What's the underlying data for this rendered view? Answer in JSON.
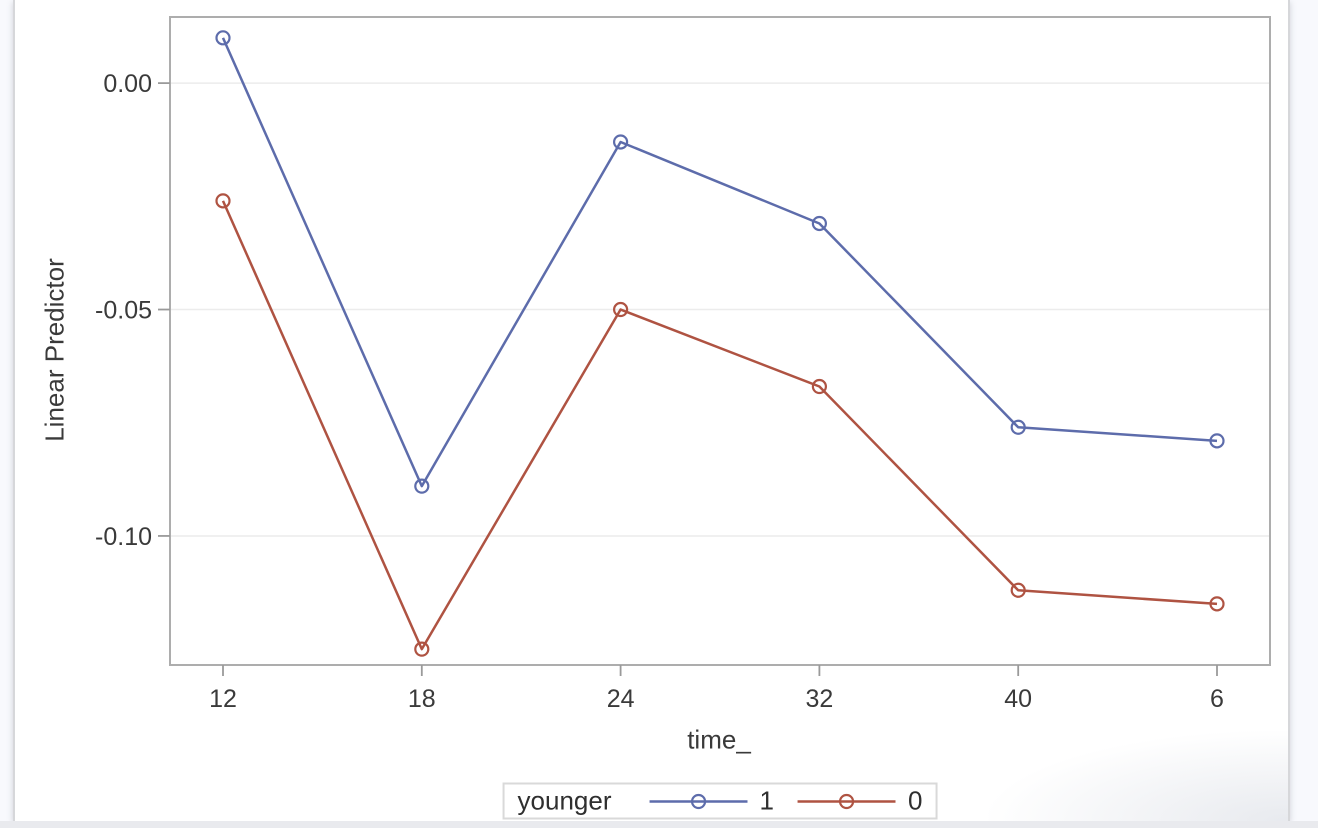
{
  "page": {
    "background": "#f8f9fd",
    "card_background": "#ffffff"
  },
  "chart_data": {
    "type": "line",
    "xlabel": "time_",
    "ylabel": "Linear Predictor",
    "x_axis_type": "discrete",
    "categories": [
      "12",
      "18",
      "24",
      "32",
      "40",
      "6"
    ],
    "y_ticks": [
      {
        "label": "0.00",
        "value": 0.0
      },
      {
        "label": "-0.05",
        "value": -0.05
      },
      {
        "label": "-0.10",
        "value": -0.1
      }
    ],
    "ylim": [
      -0.1285,
      0.0146
    ],
    "grid": "horizontal",
    "grid_color": "#ececec",
    "frame_color": "#adadad",
    "tick_color": "#9a9a9a",
    "text_color": "#3a3a3a",
    "legend": {
      "title": "younger",
      "position": "bottom-center",
      "border_color": "#d9d9d9"
    },
    "series": [
      {
        "name": "1",
        "color": "#5d6cab",
        "marker": "open-circle",
        "values": [
          0.01,
          -0.089,
          -0.013,
          -0.031,
          -0.076,
          -0.079
        ]
      },
      {
        "name": "0",
        "color": "#af5342",
        "marker": "open-circle",
        "values": [
          -0.026,
          -0.125,
          -0.05,
          -0.067,
          -0.112,
          -0.115
        ]
      }
    ]
  }
}
